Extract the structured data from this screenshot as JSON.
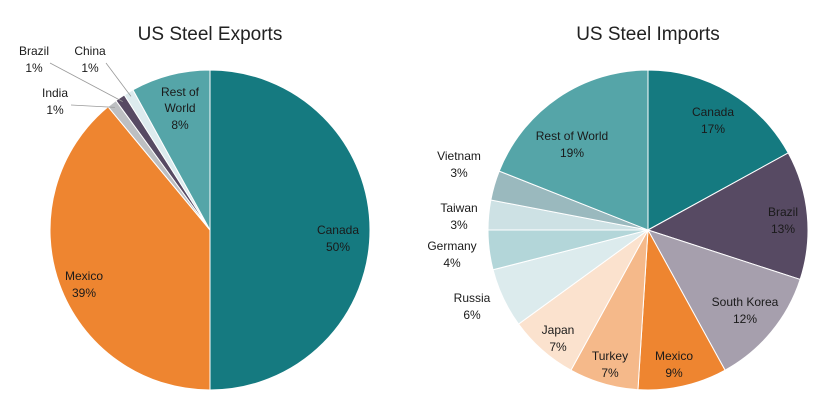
{
  "chart_data": [
    {
      "type": "pie",
      "title": "US Steel Exports",
      "slices": [
        {
          "name": "Canada",
          "value": 50,
          "label": "50%",
          "color": "#157A80"
        },
        {
          "name": "Mexico",
          "value": 39,
          "label": "39%",
          "color": "#EE8530"
        },
        {
          "name": "India",
          "value": 1,
          "label": "1%",
          "color": "#BDBFC2"
        },
        {
          "name": "Brazil",
          "value": 1,
          "label": "1%",
          "color": "#574A63"
        },
        {
          "name": "China",
          "value": 1,
          "label": "1%",
          "color": "#DDEBEE"
        },
        {
          "name": "Rest of World",
          "value": 8,
          "label": "8%",
          "color": "#55A5A8"
        }
      ]
    },
    {
      "type": "pie",
      "title": "US Steel Imports",
      "slices": [
        {
          "name": "Canada",
          "value": 17,
          "label": "17%",
          "color": "#157A80"
        },
        {
          "name": "Brazil",
          "value": 13,
          "label": "13%",
          "color": "#574A63"
        },
        {
          "name": "South Korea",
          "value": 12,
          "label": "12%",
          "color": "#A69FAD"
        },
        {
          "name": "Mexico",
          "value": 9,
          "label": "9%",
          "color": "#EE8530"
        },
        {
          "name": "Turkey",
          "value": 7,
          "label": "7%",
          "color": "#F5B98A"
        },
        {
          "name": "Japan",
          "value": 7,
          "label": "7%",
          "color": "#FBE2CE"
        },
        {
          "name": "Russia",
          "value": 6,
          "label": "6%",
          "color": "#DCEBED"
        },
        {
          "name": "Germany",
          "value": 4,
          "label": "4%",
          "color": "#B3D6D9"
        },
        {
          "name": "Taiwan",
          "value": 3,
          "label": "3%",
          "color": "#CDE1E4"
        },
        {
          "name": "Vietnam",
          "value": 3,
          "label": "3%",
          "color": "#9AB9BE"
        },
        {
          "name": "Rest of World",
          "value": 19,
          "label": "19%",
          "color": "#55A5A8"
        }
      ]
    }
  ]
}
